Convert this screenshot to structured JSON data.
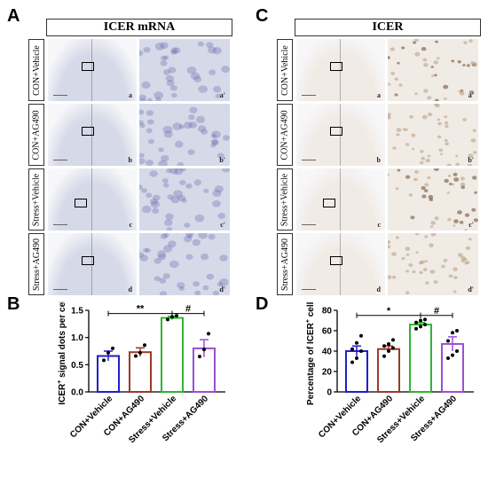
{
  "panels": {
    "A": {
      "letter": "A",
      "title": "ICER mRNA",
      "rows": [
        "CON+Vehicle",
        "CON+AG490",
        "Stress+Vehicle",
        "Stress+AG490"
      ],
      "tags": [
        [
          "a",
          "a'"
        ],
        [
          "b",
          "b'"
        ],
        [
          "c",
          "c'"
        ],
        [
          "d",
          "d'"
        ]
      ]
    },
    "C": {
      "letter": "C",
      "title": "ICER",
      "rows": [
        "CON+Vehicle",
        "CON+AG490",
        "Stress+Vehicle",
        "Stress+AG490"
      ],
      "tags": [
        [
          "a",
          "a'"
        ],
        [
          "b",
          "b'"
        ],
        [
          "c",
          "c'"
        ],
        [
          "d",
          "d'"
        ]
      ]
    },
    "B": {
      "letter": "B"
    },
    "D": {
      "letter": "D"
    }
  },
  "colors": {
    "con_vehicle": "#1f1fcc",
    "con_ag490": "#9a3a2a",
    "stress_vehicle": "#2fb52f",
    "stress_ag490": "#9b4fd6",
    "tile_mrna": "#d6d9e8",
    "tile_icer": "#f1ebe6"
  },
  "chart_data": [
    {
      "type": "bar",
      "panel": "B",
      "categories": [
        "CON+Vehicle",
        "CON+AG490",
        "Stress+Vehicle",
        "Stress+AG490"
      ],
      "values": [
        0.66,
        0.73,
        1.36,
        0.8
      ],
      "errors": [
        0.09,
        0.08,
        0.03,
        0.16
      ],
      "points": [
        [
          0.58,
          0.72,
          0.8
        ],
        [
          0.66,
          0.72,
          0.86
        ],
        [
          1.33,
          1.38,
          1.4
        ],
        [
          0.65,
          0.78,
          1.07
        ]
      ],
      "ylabel": "ICER+ signal dots per cell",
      "ylabel_main": "ICER",
      "ylabel_sup": "+",
      "ylabel_rest": " signal dots per cell",
      "ylim": [
        0,
        1.5
      ],
      "yticks": [
        "0.0",
        "0.5",
        "1.0",
        "1.5"
      ],
      "ytick_values": [
        0,
        0.5,
        1.0,
        1.5
      ],
      "significance": [
        {
          "from": 0,
          "to": 2,
          "label": "**",
          "y": 1.44
        },
        {
          "from": 2,
          "to": 3,
          "label": "#",
          "y": 1.44
        }
      ]
    },
    {
      "type": "bar",
      "panel": "D",
      "categories": [
        "CON+Vehicle",
        "CON+AG490",
        "Stress+Vehicle",
        "Stress+AG490"
      ],
      "values": [
        40,
        42,
        66,
        47
      ],
      "errors": [
        5,
        3,
        2,
        7
      ],
      "points": [
        [
          29,
          33,
          40,
          42,
          48,
          55
        ],
        [
          35,
          40,
          43,
          45,
          47,
          51
        ],
        [
          62,
          64,
          66,
          68,
          70,
          71
        ],
        [
          33,
          36,
          40,
          50,
          58,
          60
        ]
      ],
      "ylabel": "Percentage of ICER+ cells",
      "ylabel_main": "Percentage of ICER",
      "ylabel_sup": "+",
      "ylabel_rest": " cells",
      "ylim": [
        0,
        80
      ],
      "yticks": [
        "0",
        "20",
        "40",
        "60",
        "80"
      ],
      "ytick_values": [
        0,
        20,
        40,
        60,
        80
      ],
      "significance": [
        {
          "from": 0,
          "to": 2,
          "label": "*",
          "y": 75
        },
        {
          "from": 2,
          "to": 3,
          "label": "#",
          "y": 75
        }
      ]
    }
  ]
}
